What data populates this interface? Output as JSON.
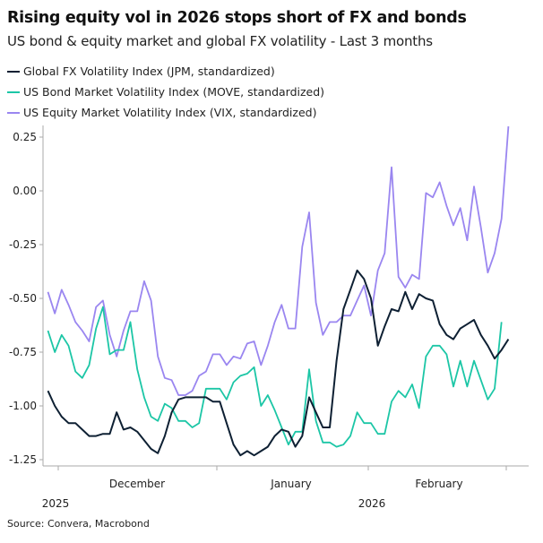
{
  "chart_data": {
    "type": "line",
    "title": "Rising equity vol in 2026 stops short of FX and bonds",
    "subtitle": "US bond & equity market and global FX volatility - Last 3 months",
    "source": "Source: Convera, Macrobond",
    "ylim": [
      -1.3,
      0.3
    ],
    "yticks": [
      "0.25",
      "0.00",
      "-0.25",
      "-0.50",
      "-0.75",
      "-1.00",
      "-1.25"
    ],
    "ytick_values": [
      0.25,
      0,
      -0.25,
      -0.5,
      -0.75,
      -1.0,
      -1.25
    ],
    "month_labels": [
      "December",
      "January",
      "February"
    ],
    "year_labels": [
      "2025",
      "2026"
    ],
    "grid": false,
    "legend_position": "top-left",
    "series": [
      {
        "name": "Global FX Volatility Index (JPM, standardized)",
        "color": "#0e2033",
        "values": [
          -0.93,
          -1.0,
          -1.05,
          -1.08,
          -1.08,
          -1.11,
          -1.14,
          -1.14,
          -1.13,
          -1.13,
          -1.03,
          -1.11,
          -1.1,
          -1.12,
          -1.16,
          -1.2,
          -1.22,
          -1.14,
          -1.03,
          -0.97,
          -0.96,
          -0.96,
          -0.96,
          -0.96,
          -0.98,
          -0.98,
          -1.08,
          -1.18,
          -1.23,
          -1.21,
          -1.23,
          -1.21,
          -1.19,
          -1.14,
          -1.11,
          -1.12,
          -1.19,
          -1.14,
          -0.96,
          -1.03,
          -1.1,
          -1.1,
          -0.79,
          -0.55,
          -0.46,
          -0.37,
          -0.41,
          -0.5,
          -0.72,
          -0.63,
          -0.55,
          -0.56,
          -0.47,
          -0.55,
          -0.48,
          -0.5,
          -0.51,
          -0.62,
          -0.67,
          -0.69,
          -0.64,
          -0.62,
          -0.6,
          -0.67,
          -0.72,
          -0.78,
          -0.74,
          -0.69
        ]
      },
      {
        "name": "US Bond Market Volatility Index (MOVE, standardized)",
        "color": "#1cc6a6",
        "values": [
          -0.65,
          -0.75,
          -0.67,
          -0.72,
          -0.84,
          -0.87,
          -0.81,
          -0.64,
          -0.54,
          -0.76,
          -0.74,
          -0.74,
          -0.61,
          -0.83,
          -0.96,
          -1.05,
          -1.07,
          -0.99,
          -1.01,
          -1.07,
          -1.07,
          -1.1,
          -1.08,
          -0.92,
          -0.92,
          -0.92,
          -0.97,
          -0.89,
          -0.86,
          -0.85,
          -0.82,
          -1.0,
          -0.95,
          -1.02,
          -1.1,
          -1.18,
          -1.12,
          -1.12,
          -0.83,
          -1.07,
          -1.17,
          -1.17,
          -1.19,
          -1.18,
          -1.14,
          -1.03,
          -1.08,
          -1.08,
          -1.13,
          -1.13,
          -0.98,
          -0.93,
          -0.96,
          -0.9,
          -1.01,
          -0.77,
          -0.72,
          -0.72,
          -0.76,
          -0.91,
          -0.79,
          -0.91,
          -0.79,
          -0.88,
          -0.97,
          -0.92,
          -0.61
        ]
      },
      {
        "name": "US Equity Market Volatility Index (VIX, standardized)",
        "color": "#9a86f0",
        "values": [
          -0.47,
          -0.57,
          -0.46,
          -0.53,
          -0.61,
          -0.65,
          -0.7,
          -0.54,
          -0.51,
          -0.67,
          -0.77,
          -0.65,
          -0.56,
          -0.56,
          -0.42,
          -0.51,
          -0.77,
          -0.87,
          -0.88,
          -0.95,
          -0.95,
          -0.93,
          -0.86,
          -0.84,
          -0.76,
          -0.76,
          -0.81,
          -0.77,
          -0.78,
          -0.71,
          -0.7,
          -0.81,
          -0.72,
          -0.61,
          -0.53,
          -0.64,
          -0.64,
          -0.26,
          -0.1,
          -0.52,
          -0.67,
          -0.61,
          -0.61,
          -0.58,
          -0.58,
          -0.51,
          -0.44,
          -0.58,
          -0.37,
          -0.29,
          0.11,
          -0.4,
          -0.45,
          -0.39,
          -0.41,
          -0.01,
          -0.03,
          0.04,
          -0.07,
          -0.16,
          -0.08,
          -0.23,
          0.02,
          -0.17,
          -0.38,
          -0.29,
          -0.13,
          0.3
        ]
      }
    ]
  }
}
